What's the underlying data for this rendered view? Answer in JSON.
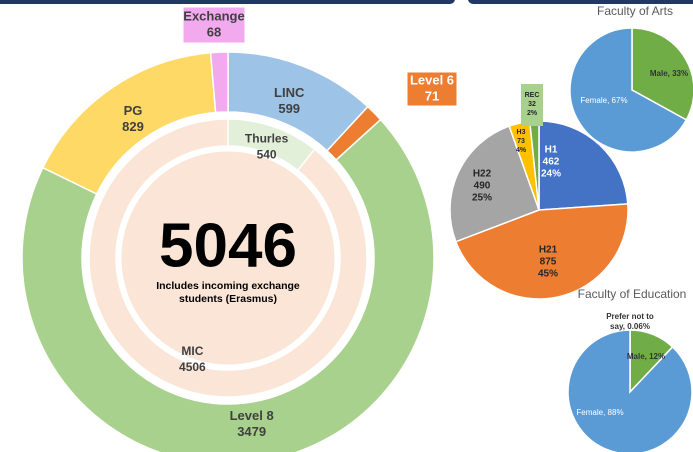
{
  "chart_data": [
    {
      "type": "donut",
      "center_value": 5046,
      "center_note": "Includes incoming exchange students (Erasmus)",
      "outer": {
        "categories": [
          "LINC",
          "Level 6",
          "Level 8",
          "PG",
          "Exchange"
        ],
        "values": [
          599,
          71,
          3479,
          829,
          68
        ],
        "colors": [
          "#9dc3e6",
          "#ed7d31",
          "#a9d18e",
          "#ffd966",
          "#f2a9ee"
        ]
      },
      "inner": {
        "categories": [
          "Thurles",
          "MIC"
        ],
        "values": [
          540,
          4506
        ],
        "colors": [
          "#e2f0d9",
          "#fbe5d6"
        ]
      }
    },
    {
      "type": "pie",
      "categories": [
        "H1",
        "H21",
        "H22",
        "H3",
        "REC"
      ],
      "values": [
        462,
        875,
        490,
        73,
        32
      ],
      "percent_labels": [
        "24%",
        "45%",
        "25%",
        "4%",
        "2%"
      ],
      "colors": [
        "#4472c4",
        "#ed7d31",
        "#a5a5a5",
        "#ffc000",
        "#70ad47"
      ]
    },
    {
      "type": "pie",
      "title": "Faculty of Arts",
      "categories": [
        "Male",
        "Female"
      ],
      "values": [
        33,
        67
      ],
      "value_labels": [
        "Male, 33%",
        "Female, 67%"
      ],
      "colors": [
        "#70ad47",
        "#5b9bd5"
      ]
    },
    {
      "type": "pie",
      "title": "Faculty of Education",
      "categories": [
        "Prefer not to say",
        "Male",
        "Female"
      ],
      "values": [
        0.06,
        12,
        88
      ],
      "value_labels": [
        "Prefer not to say, 0.06%",
        "Male, 12%",
        "Female, 88%"
      ],
      "colors": [
        "#a5a5a5",
        "#70ad47",
        "#5b9bd5"
      ]
    }
  ]
}
